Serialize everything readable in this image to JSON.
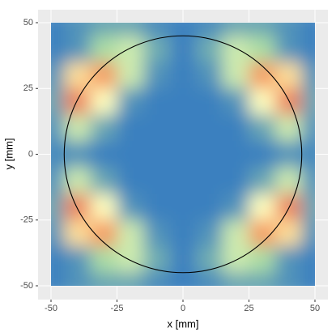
{
  "chart_data": {
    "type": "heatmap",
    "x_label": "x [mm]",
    "y_label": "y [mm]",
    "xlim": [
      -50,
      50
    ],
    "ylim": [
      -50,
      50
    ],
    "xticks": [
      -50,
      -25,
      0,
      25,
      50
    ],
    "yticks": [
      -50,
      -25,
      0,
      25,
      50
    ],
    "x": [
      -50,
      -40,
      -30,
      -20,
      -10,
      0,
      10,
      20,
      30,
      40,
      50
    ],
    "y": [
      50,
      40,
      30,
      20,
      10,
      0,
      -10,
      -20,
      -30,
      -40,
      -50
    ],
    "z": [
      [
        0,
        0.05,
        0.1,
        0.1,
        0.03,
        0,
        0.03,
        0.1,
        0.1,
        0.05,
        0
      ],
      [
        0,
        0.05,
        0.25,
        0.35,
        0.12,
        0,
        0.12,
        0.35,
        0.25,
        0.05,
        0
      ],
      [
        0.05,
        0.6,
        0.8,
        0.35,
        0.05,
        0,
        0.05,
        0.35,
        0.8,
        0.6,
        0.05
      ],
      [
        0.1,
        0.85,
        0.5,
        0.05,
        0,
        0,
        0,
        0.05,
        0.5,
        0.85,
        0.1
      ],
      [
        0.05,
        0.35,
        0.1,
        0,
        0,
        0,
        0,
        0,
        0.1,
        0.35,
        0.05
      ],
      [
        0.02,
        0.05,
        0,
        0,
        0,
        0,
        0,
        0,
        0,
        0.05,
        0.02
      ],
      [
        0.05,
        0.35,
        0.1,
        0,
        0,
        0,
        0,
        0,
        0.1,
        0.35,
        0.05
      ],
      [
        0.1,
        0.85,
        0.5,
        0.05,
        0,
        0,
        0,
        0.05,
        0.5,
        0.85,
        0.1
      ],
      [
        0.05,
        0.6,
        0.8,
        0.35,
        0.05,
        0,
        0.05,
        0.35,
        0.8,
        0.6,
        0.05
      ],
      [
        0,
        0.05,
        0.25,
        0.35,
        0.12,
        0,
        0.12,
        0.35,
        0.25,
        0.05,
        0
      ],
      [
        0,
        0.05,
        0.1,
        0.1,
        0.03,
        0,
        0.03,
        0.1,
        0.1,
        0.05,
        0
      ]
    ],
    "colors": [
      "#3a80bf",
      "#abdda4",
      "#ffffbf",
      "#fdae61",
      "#d53e4f"
    ],
    "circle": {
      "x": 0,
      "y": 0,
      "r": 45,
      "color": "#000000"
    },
    "grid": true
  }
}
